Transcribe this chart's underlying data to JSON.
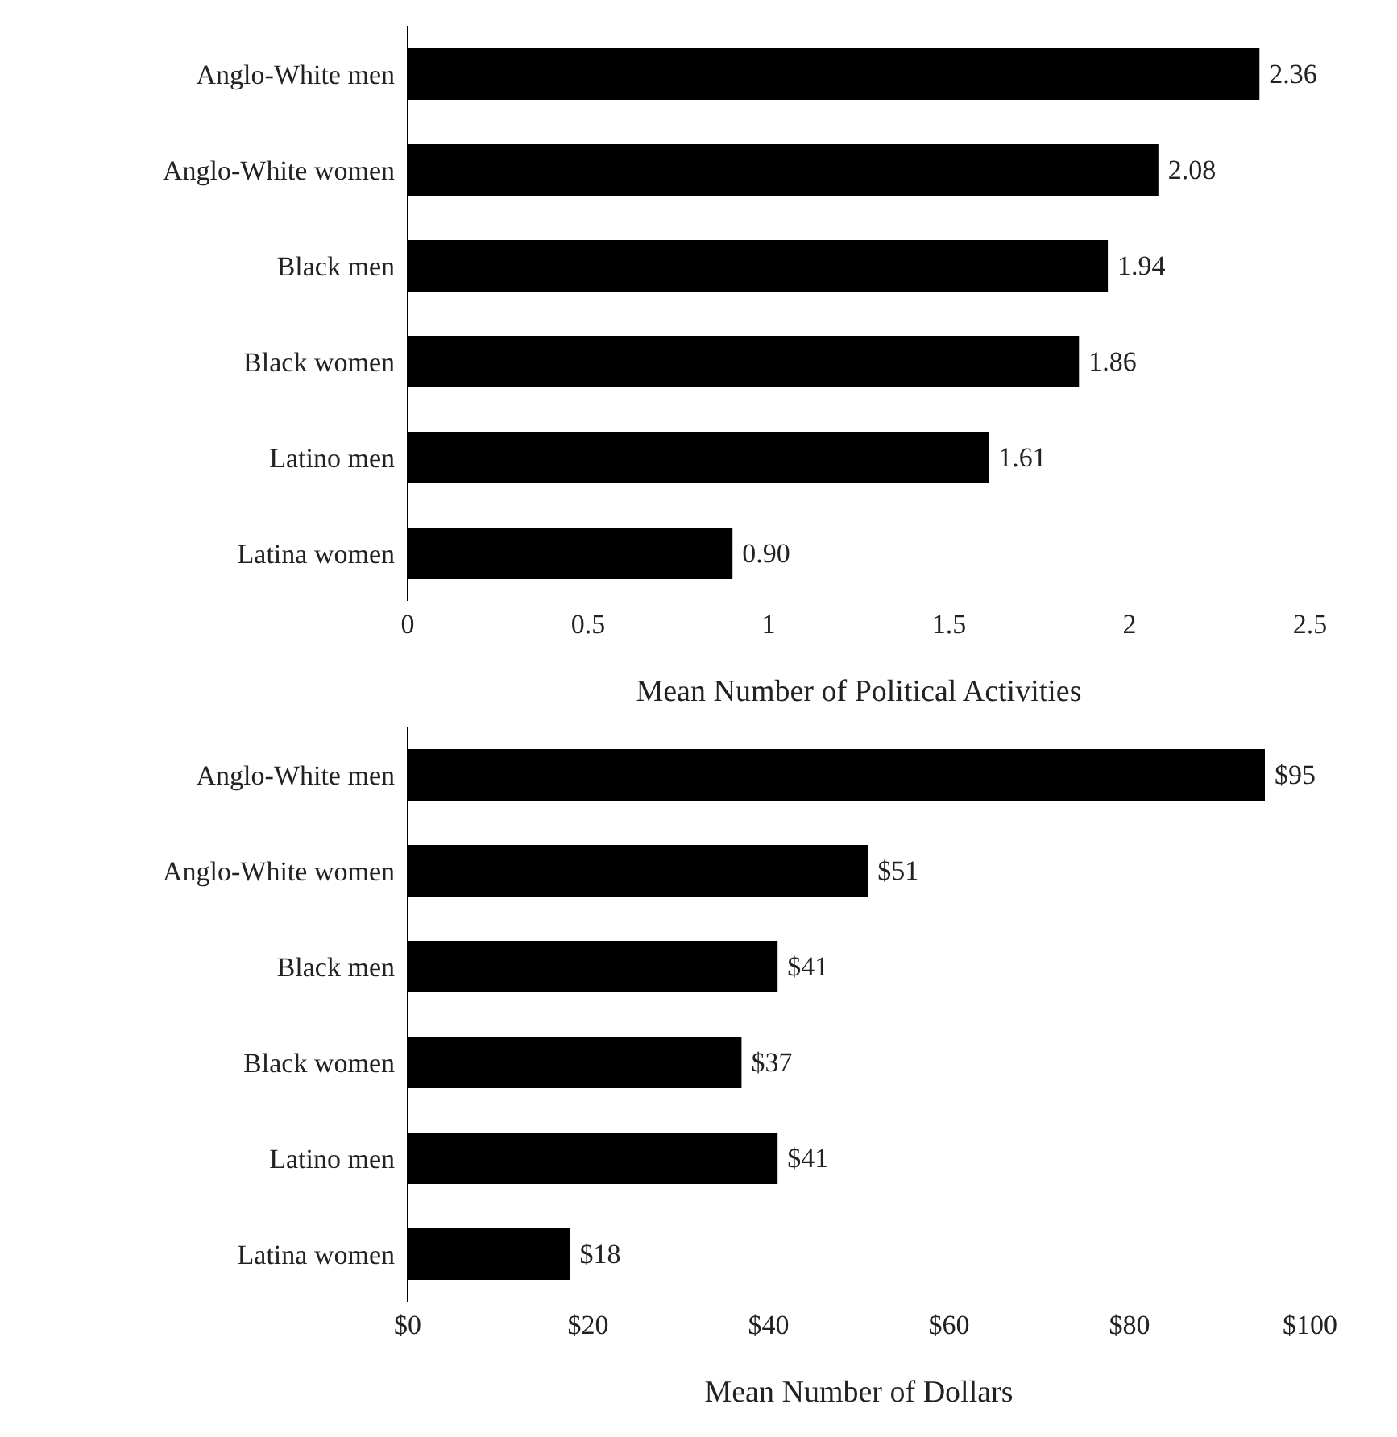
{
  "chart_data": [
    {
      "type": "bar",
      "orientation": "horizontal",
      "xlabel": "Mean Number of Political Activities",
      "categories": [
        "Anglo-White men",
        "Anglo-White women",
        "Black men",
        "Black women",
        "Latino men",
        "Latina women"
      ],
      "values": [
        2.36,
        2.08,
        1.94,
        1.86,
        1.61,
        0.9
      ],
      "value_labels": [
        "2.36",
        "2.08",
        "1.94",
        "1.86",
        "1.61",
        "0.90"
      ],
      "color": "#000000",
      "xlim": [
        0,
        2.5
      ],
      "xticks": [
        0,
        0.5,
        1,
        1.5,
        2,
        2.5
      ]
    },
    {
      "type": "bar",
      "orientation": "horizontal",
      "xlabel": "Mean Number of Dollars",
      "categories": [
        "Anglo-White men",
        "Anglo-White women",
        "Black men",
        "Black women",
        "Latino men",
        "Latina women"
      ],
      "values": [
        95,
        51,
        41,
        37,
        41,
        18
      ],
      "value_labels": [
        "$95",
        "$51",
        "$41",
        "$37",
        "$41",
        "$18"
      ],
      "color": "#000000",
      "xlim": [
        0,
        100
      ],
      "xticks": [
        {
          "value": 0,
          "label": "$0"
        },
        {
          "value": 20,
          "label": "$20"
        },
        {
          "value": 40,
          "label": "$40"
        },
        {
          "value": 60,
          "label": "$60"
        },
        {
          "value": 80,
          "label": "$80"
        },
        {
          "value": 100,
          "label": "$100"
        }
      ]
    }
  ]
}
